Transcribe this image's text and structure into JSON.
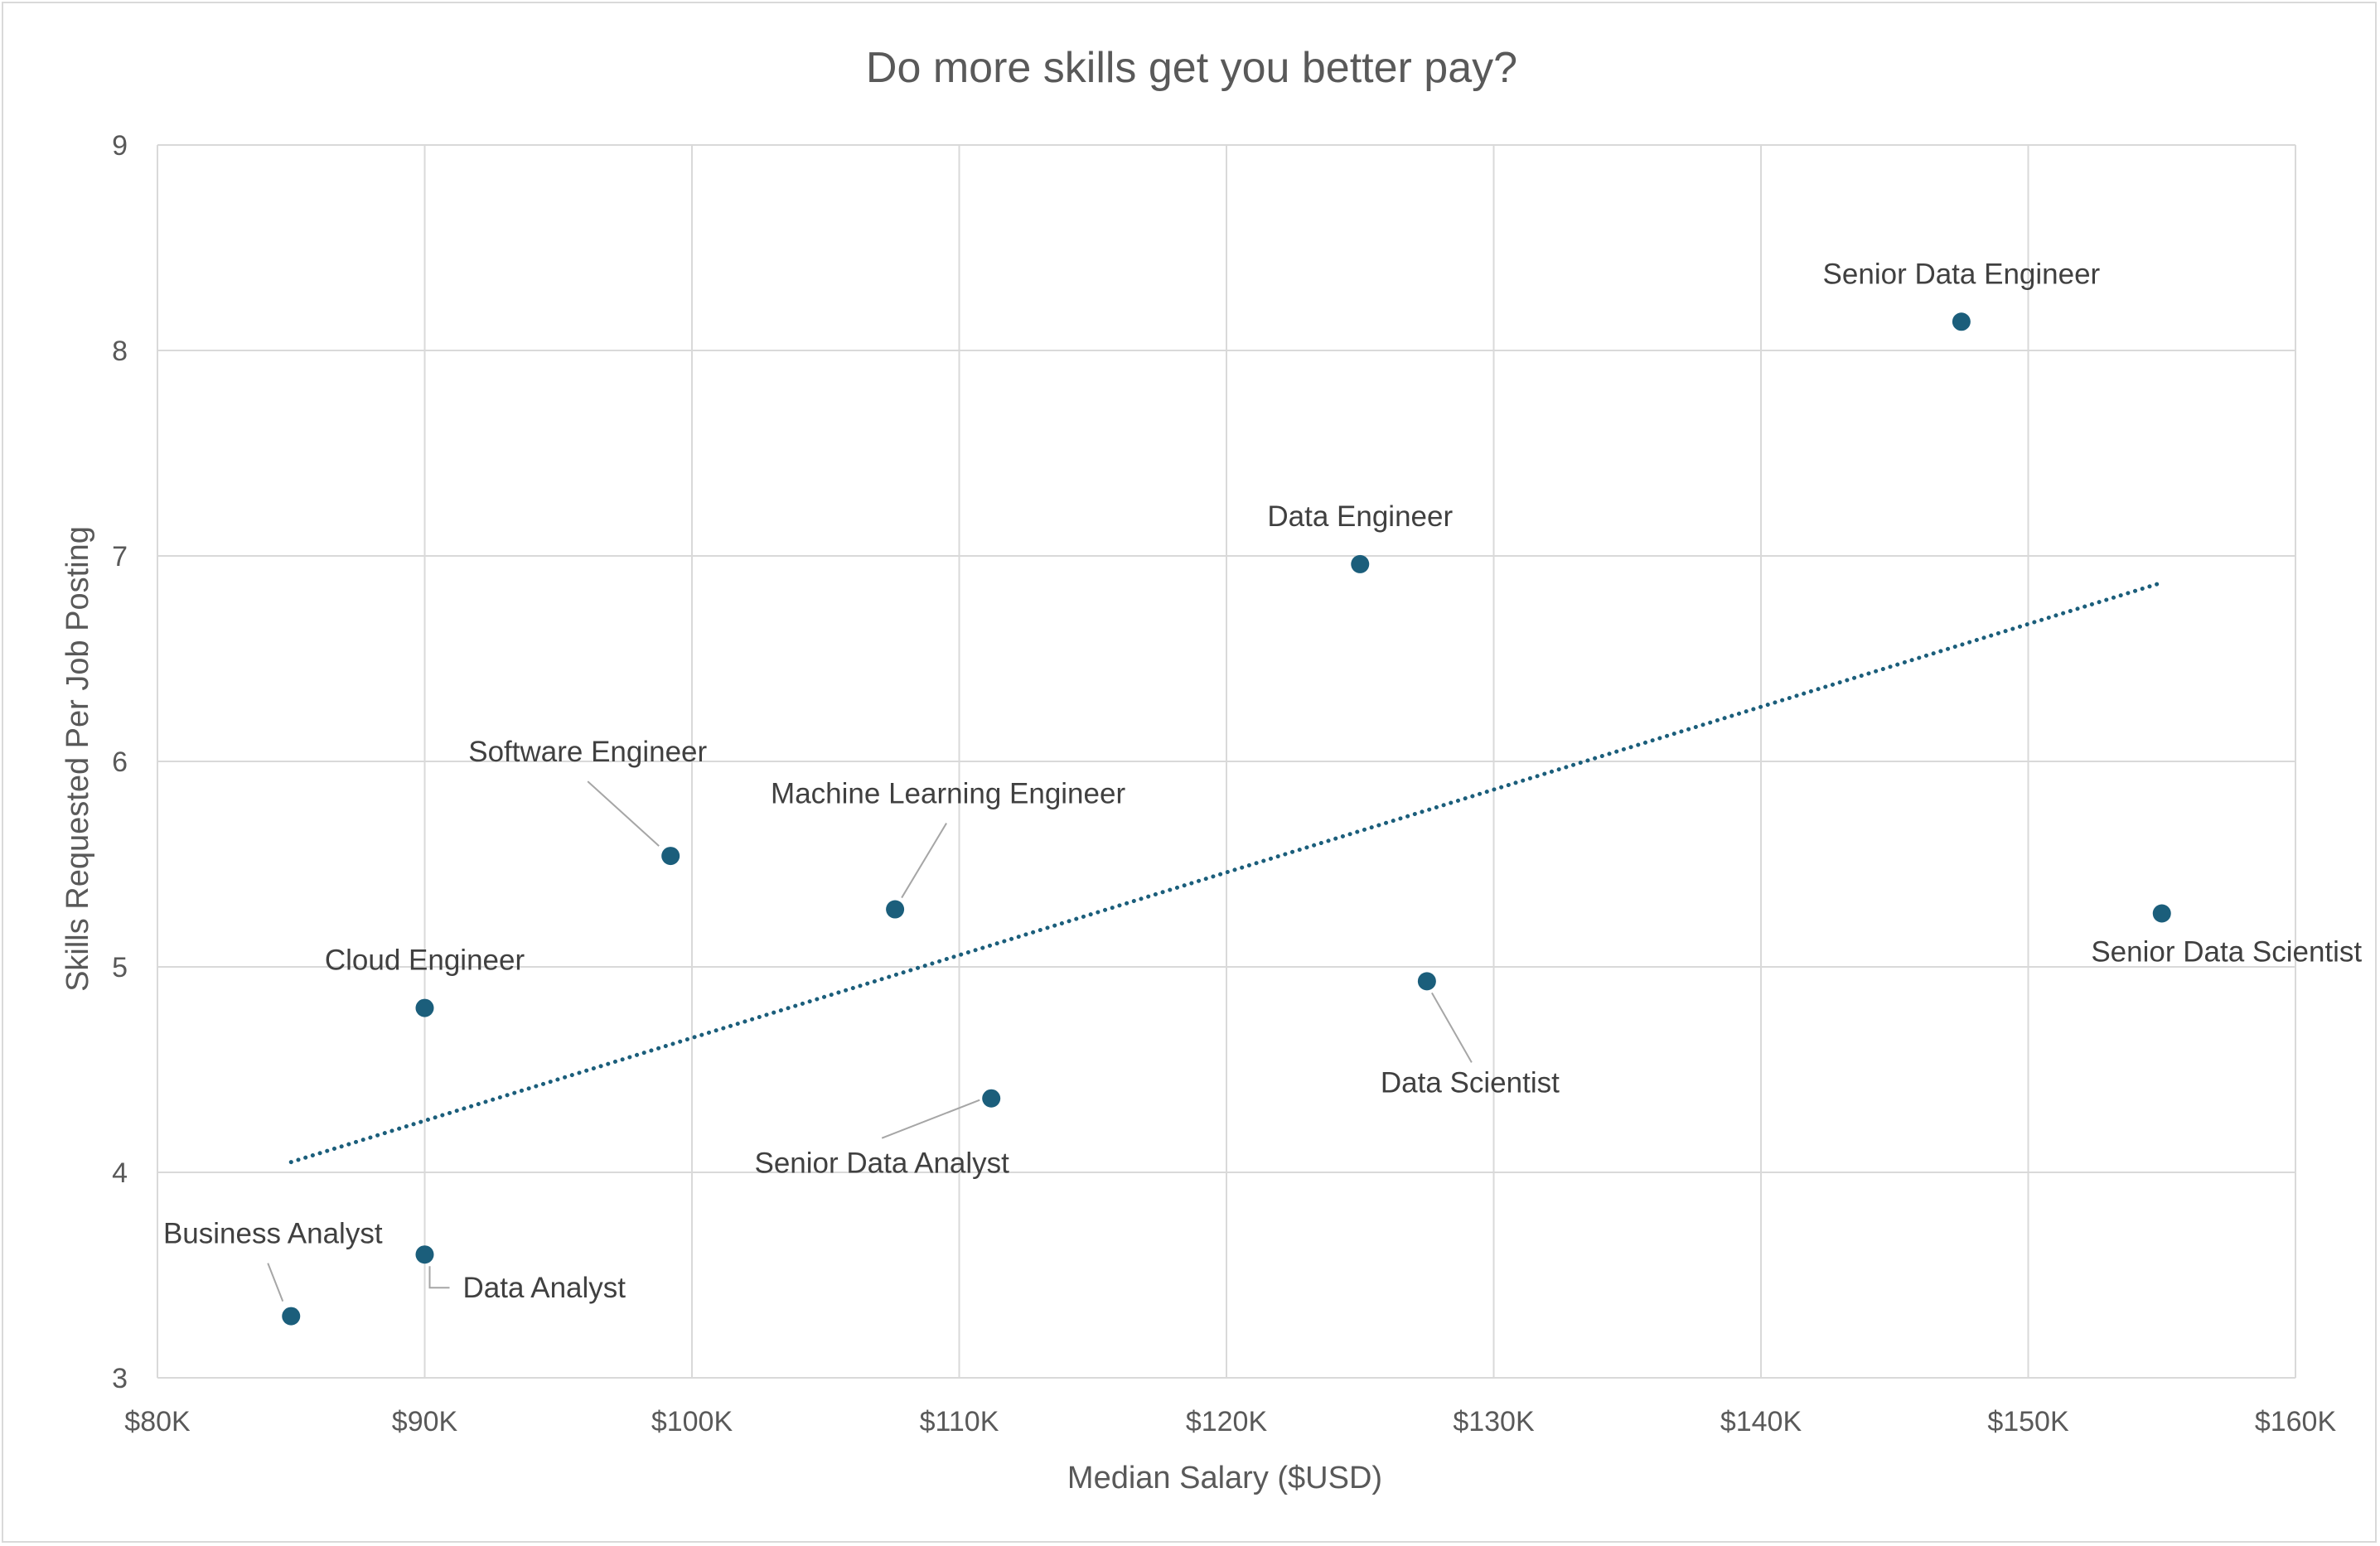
{
  "chart_data": {
    "type": "scatter",
    "title": "Do more skills get you better pay?",
    "xlabel": "Median Salary ($USD)",
    "ylabel": "Skills Requested Per Job Posting",
    "xlim": [
      80000,
      160000
    ],
    "ylim": [
      3,
      9
    ],
    "x_ticks": [
      80000,
      90000,
      100000,
      110000,
      120000,
      130000,
      140000,
      150000,
      160000
    ],
    "x_tick_labels": [
      "$80K",
      "$90K",
      "$100K",
      "$110K",
      "$120K",
      "$130K",
      "$140K",
      "$150K",
      "$160K"
    ],
    "y_ticks": [
      3,
      4,
      5,
      6,
      7,
      8,
      9
    ],
    "y_tick_labels": [
      "3",
      "4",
      "5",
      "6",
      "7",
      "8",
      "9"
    ],
    "grid": true,
    "legend": "none",
    "point_color": "#1b5e7b",
    "trendline": {
      "type": "linear",
      "style": "dotted",
      "color": "#1b5e7b",
      "from": [
        85000,
        4.05
      ],
      "to": [
        155000,
        6.87
      ]
    },
    "points": [
      {
        "label": "Business Analyst",
        "x": 85000,
        "y": 3.3
      },
      {
        "label": "Data Analyst",
        "x": 90000,
        "y": 3.6
      },
      {
        "label": "Cloud Engineer",
        "x": 90000,
        "y": 4.8
      },
      {
        "label": "Software Engineer",
        "x": 99200,
        "y": 5.54
      },
      {
        "label": "Machine Learning Engineer",
        "x": 107600,
        "y": 5.28
      },
      {
        "label": "Senior Data Analyst",
        "x": 111200,
        "y": 4.36
      },
      {
        "label": "Data Engineer",
        "x": 125000,
        "y": 6.96
      },
      {
        "label": "Data Scientist",
        "x": 127500,
        "y": 4.93
      },
      {
        "label": "Senior Data Engineer",
        "x": 147500,
        "y": 8.14
      },
      {
        "label": "Senior Data Scientist",
        "x": 155000,
        "y": 5.26
      }
    ]
  }
}
